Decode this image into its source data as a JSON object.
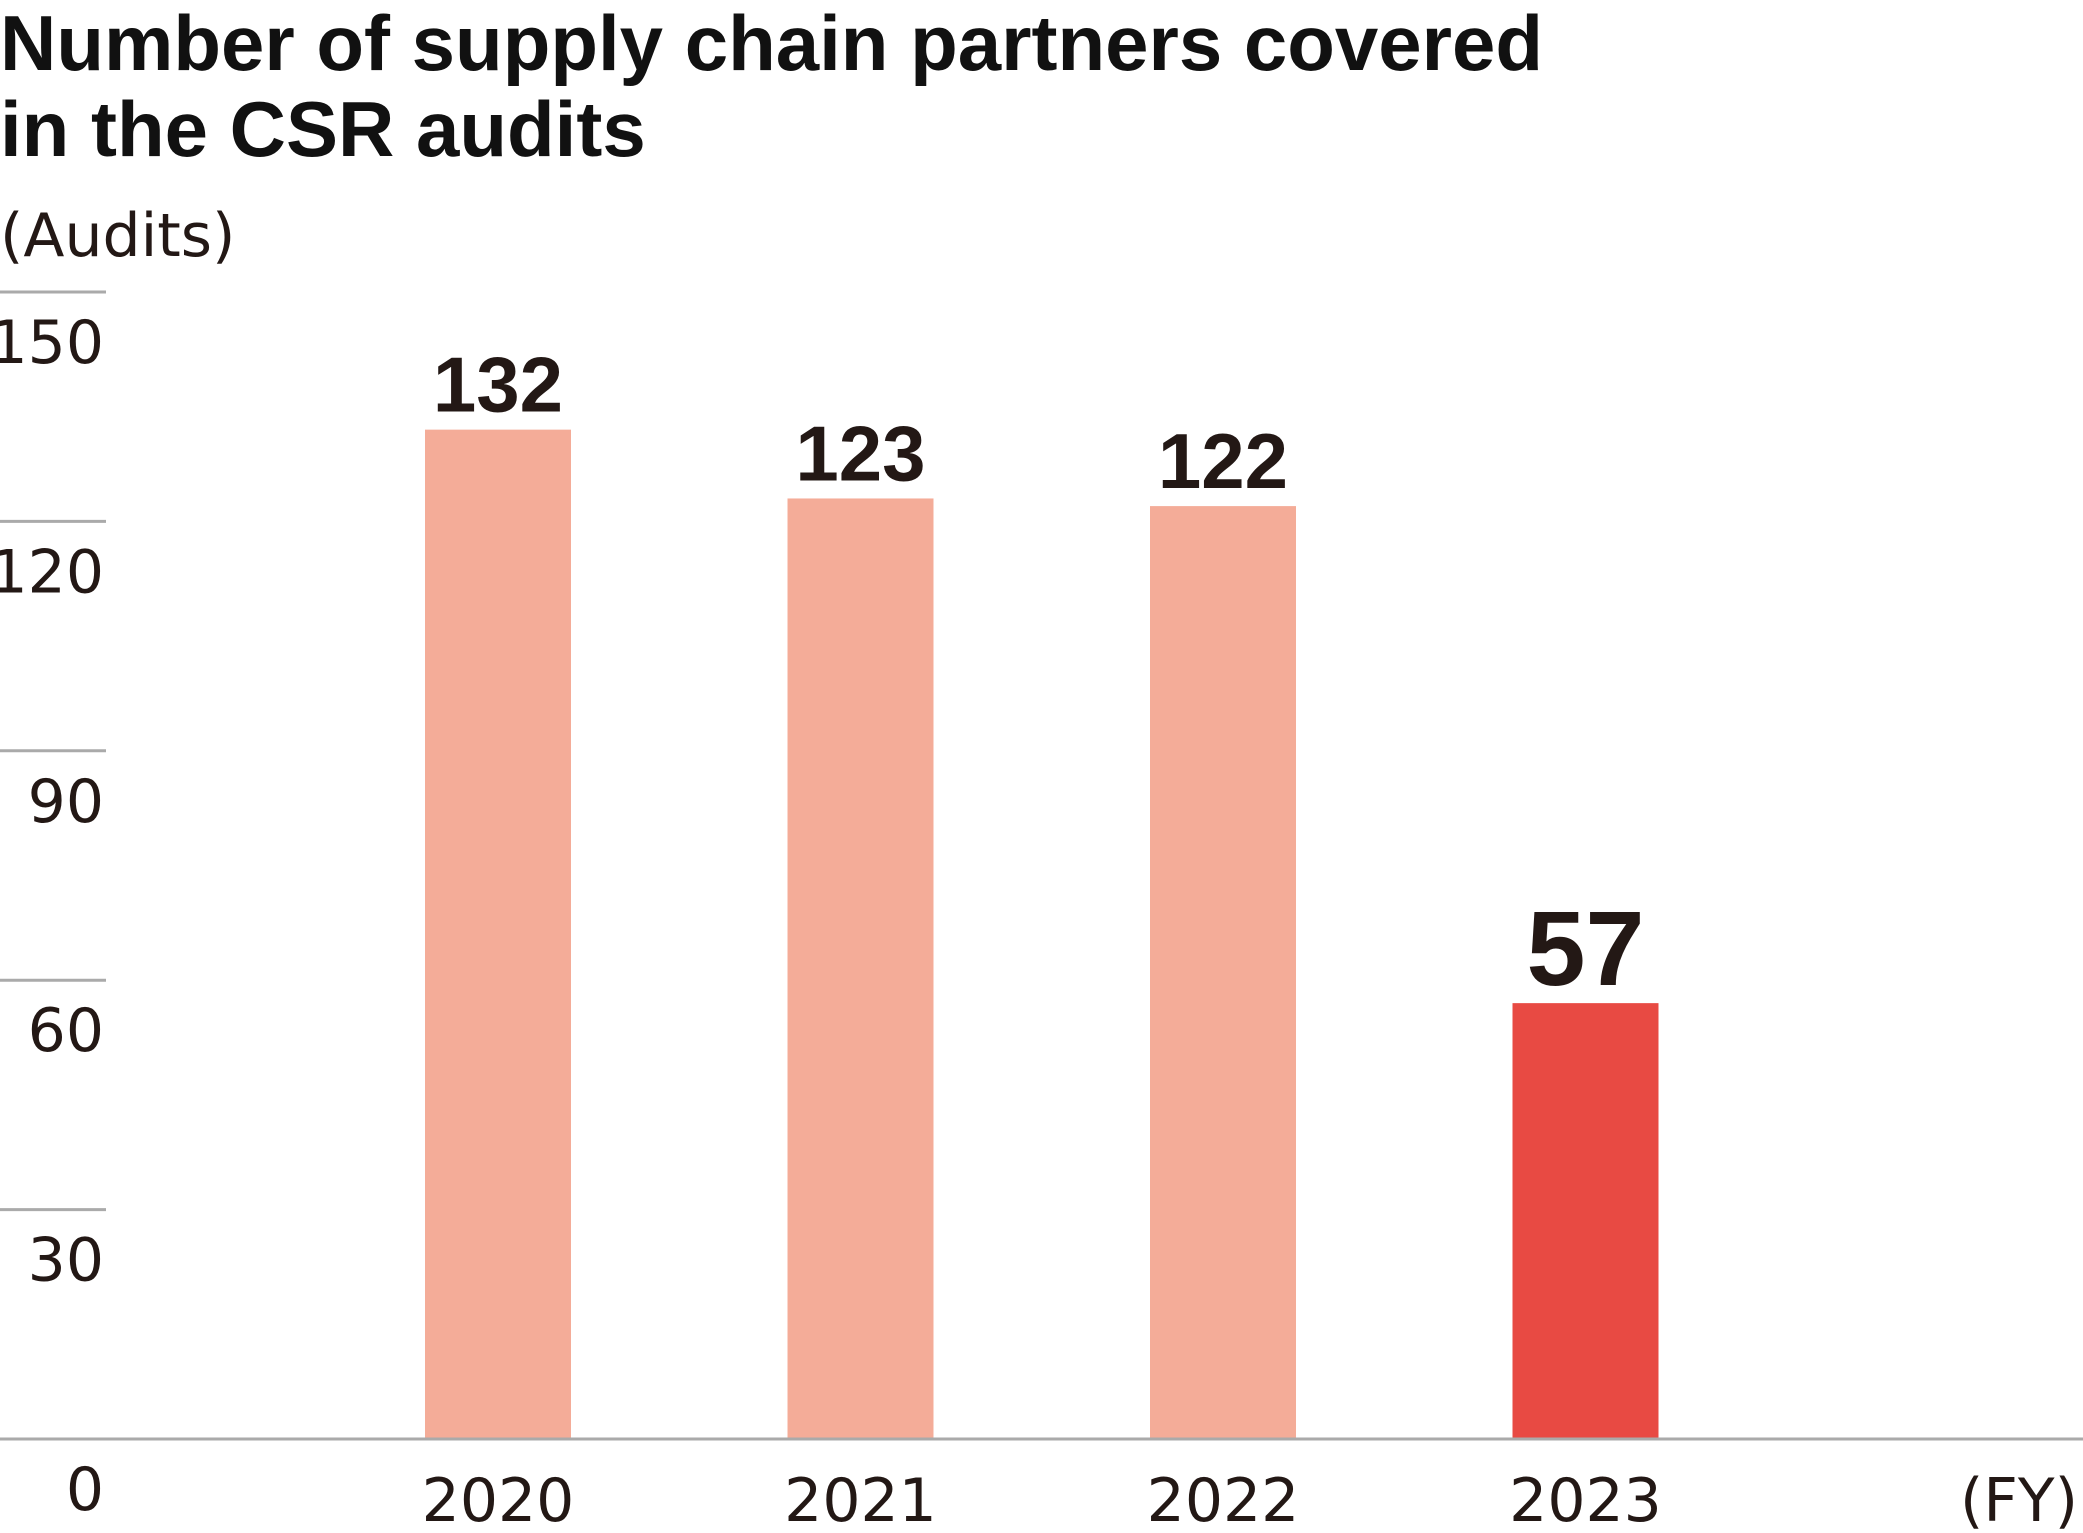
{
  "title_lines": [
    "Number of supply chain partners covered",
    "in the CSR audits"
  ],
  "chart_data": {
    "type": "bar",
    "title": "Number of supply chain partners covered in the CSR audits",
    "ylabel": "(Audits)",
    "xlabel": "(FY)",
    "categories": [
      "2020",
      "2021",
      "2022",
      "2023"
    ],
    "values": [
      132,
      123,
      122,
      57
    ],
    "value_labels": [
      "132",
      "123",
      "122",
      "57"
    ],
    "ylim": [
      0,
      150
    ],
    "yticks": [
      0,
      30,
      60,
      90,
      120,
      150
    ],
    "ytick_labels": [
      "0",
      "30",
      "60",
      "90",
      "120",
      "150"
    ],
    "grid": true,
    "colors": {
      "bar": "#f4ac98",
      "highlight": "#e84a43",
      "text": "#231815",
      "axis": "#aaaaaa"
    },
    "highlight_index": 3
  }
}
